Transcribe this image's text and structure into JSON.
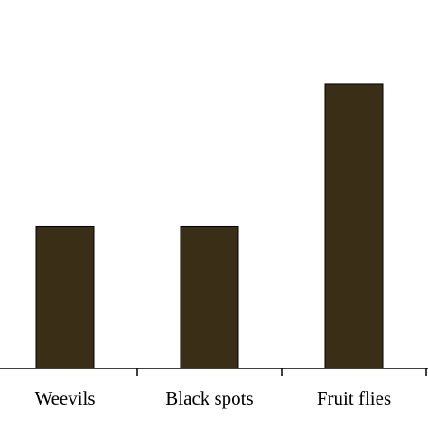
{
  "chart_data": {
    "type": "bar",
    "categories": [
      "Weevils",
      "Black spots",
      "Fruit flies"
    ],
    "values": [
      1,
      1,
      2
    ],
    "color": "#3a2e16",
    "ylim": [
      0,
      2.59
    ],
    "grid": false
  }
}
